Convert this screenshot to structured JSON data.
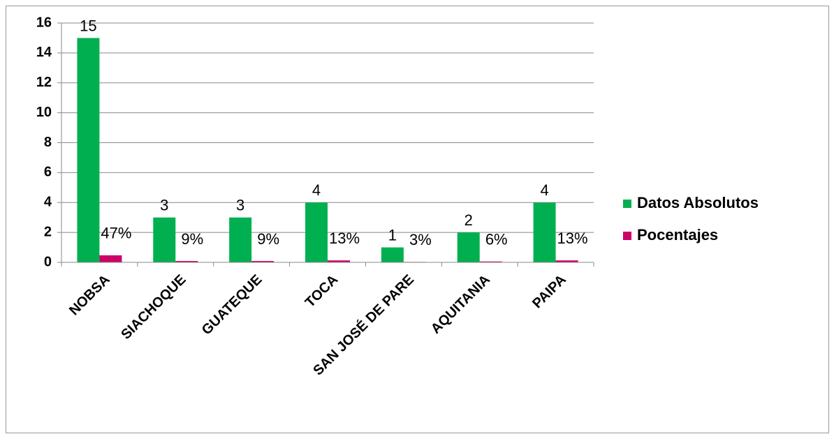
{
  "chart_data": {
    "type": "bar",
    "categories": [
      "NOBSA",
      "SIACHOQUE",
      "GUATEQUE",
      "TOCA",
      "SAN JOSÉ DE PARE",
      "AQUITANIA",
      "PAIPA"
    ],
    "series": [
      {
        "name": "Datos Absolutos",
        "color": "#00b050",
        "values": [
          15,
          3,
          3,
          4,
          1,
          2,
          4
        ]
      },
      {
        "name": "Pocentajes",
        "color": "#cc0066",
        "values": [
          0.47,
          0.09,
          0.09,
          0.13,
          0.03,
          0.06,
          0.13
        ],
        "value_labels": [
          "47%",
          "9%",
          "9%",
          "13%",
          "3%",
          "6%",
          "13%"
        ]
      }
    ],
    "ylim": [
      0,
      16
    ],
    "yticks": [
      0,
      2,
      4,
      6,
      8,
      10,
      12,
      14,
      16
    ],
    "grid": true,
    "legend": "right"
  }
}
